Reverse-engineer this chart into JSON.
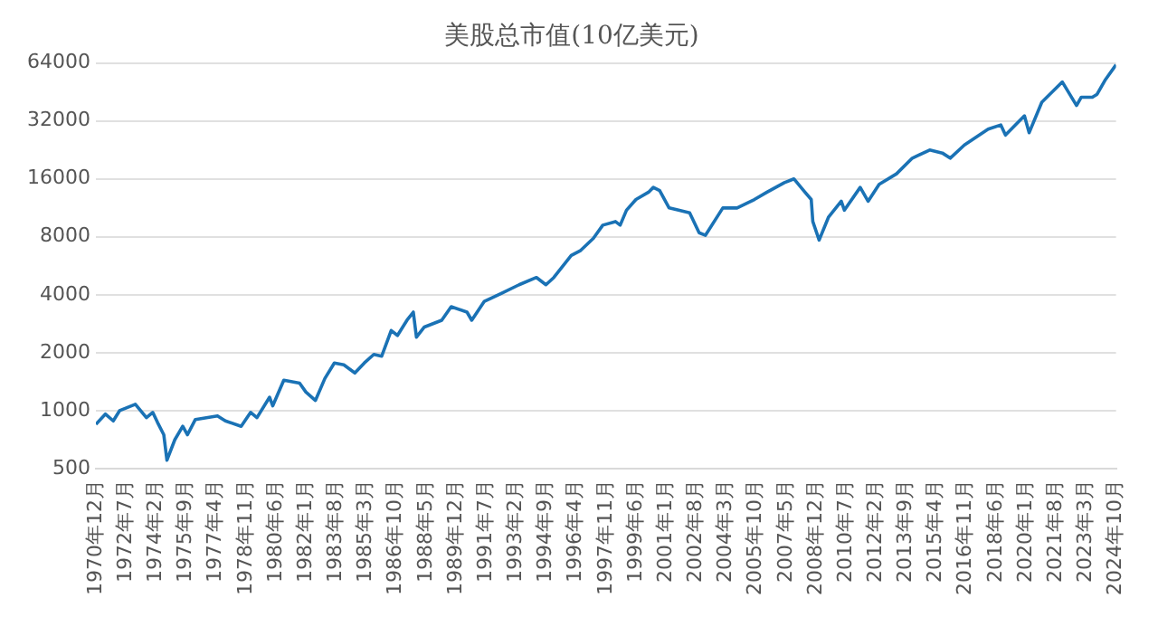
{
  "chart_data": {
    "type": "line",
    "title": "美股总市值(10亿美元)",
    "x": [
      "1970-12",
      "1971-06",
      "1971-11",
      "1972-03",
      "1973-01",
      "1973-08",
      "1973-12",
      "1974-03",
      "1974-07",
      "1974-09",
      "1975-02",
      "1975-07",
      "1975-10",
      "1976-03",
      "1977-05",
      "1977-10",
      "1978-08",
      "1979-02",
      "1979-06",
      "1980-02",
      "1980-04",
      "1980-11",
      "1981-09",
      "1982-01",
      "1982-07",
      "1983-01",
      "1983-07",
      "1984-01",
      "1984-08",
      "1985-02",
      "1985-08",
      "1986-01",
      "1986-07",
      "1986-11",
      "1987-05",
      "1987-09",
      "1987-11",
      "1988-04",
      "1989-03",
      "1989-09",
      "1990-07",
      "1990-10",
      "1991-06",
      "1992-05",
      "1993-04",
      "1994-03",
      "1994-09",
      "1995-02",
      "1996-01",
      "1996-07",
      "1997-03",
      "1997-09",
      "1998-05",
      "1998-08",
      "1998-12",
      "1999-06",
      "2000-02",
      "2000-05",
      "2000-09",
      "2001-03",
      "2001-09",
      "2002-04",
      "2002-10",
      "2003-02",
      "2004-01",
      "2004-10",
      "2005-09",
      "2006-05",
      "2007-04",
      "2007-10",
      "2008-05",
      "2008-09",
      "2008-10",
      "2009-02",
      "2009-08",
      "2010-04",
      "2010-06",
      "2011-04",
      "2011-09",
      "2012-04",
      "2013-03",
      "2014-01",
      "2014-12",
      "2015-08",
      "2016-01",
      "2016-10",
      "2018-01",
      "2018-09",
      "2018-12",
      "2019-12",
      "2020-03",
      "2020-11",
      "2021-12",
      "2022-09",
      "2022-12",
      "2023-07",
      "2023-10",
      "2024-03",
      "2024-10"
    ],
    "series": [
      {
        "color": "#1a72b5",
        "values": [
          850,
          960,
          885,
          1000,
          1080,
          920,
          980,
          870,
          750,
          553,
          707,
          830,
          750,
          900,
          940,
          885,
          830,
          980,
          920,
          1175,
          1060,
          1440,
          1390,
          1250,
          1130,
          1470,
          1770,
          1730,
          1570,
          1770,
          1960,
          1920,
          2610,
          2460,
          2950,
          3250,
          2410,
          2720,
          2950,
          3470,
          3250,
          2950,
          3700,
          4080,
          4510,
          4920,
          4510,
          4920,
          6400,
          6800,
          7850,
          9200,
          9600,
          9200,
          11000,
          12500,
          13650,
          14450,
          13900,
          11300,
          11000,
          10650,
          8400,
          8150,
          11300,
          11300,
          12500,
          13650,
          15300,
          16000,
          13650,
          12500,
          9600,
          7700,
          10150,
          12250,
          11000,
          14450,
          12250,
          15000,
          17000,
          20500,
          22600,
          21800,
          20500,
          24000,
          29000,
          30500,
          27000,
          34000,
          27800,
          40000,
          51000,
          38500,
          42500,
          42500,
          44000,
          52000,
          62600
        ]
      }
    ],
    "xlim": [
      "1970-12",
      "2024-10"
    ],
    "xticks": [
      {
        "value": "1970-12",
        "label": "1970年12月"
      },
      {
        "value": "1972-07",
        "label": "1972年7月"
      },
      {
        "value": "1974-02",
        "label": "1974年2月"
      },
      {
        "value": "1975-09",
        "label": "1975年9月"
      },
      {
        "value": "1977-04",
        "label": "1977年4月"
      },
      {
        "value": "1978-11",
        "label": "1978年11月"
      },
      {
        "value": "1980-06",
        "label": "1980年6月"
      },
      {
        "value": "1982-01",
        "label": "1982年1月"
      },
      {
        "value": "1983-08",
        "label": "1983年8月"
      },
      {
        "value": "1985-03",
        "label": "1985年3月"
      },
      {
        "value": "1986-10",
        "label": "1986年10月"
      },
      {
        "value": "1988-05",
        "label": "1988年5月"
      },
      {
        "value": "1989-12",
        "label": "1989年12月"
      },
      {
        "value": "1991-07",
        "label": "1991年7月"
      },
      {
        "value": "1993-02",
        "label": "1993年2月"
      },
      {
        "value": "1994-09",
        "label": "1994年9月"
      },
      {
        "value": "1996-04",
        "label": "1996年4月"
      },
      {
        "value": "1997-11",
        "label": "1997年11月"
      },
      {
        "value": "1999-06",
        "label": "1999年6月"
      },
      {
        "value": "2001-01",
        "label": "2001年1月"
      },
      {
        "value": "2002-08",
        "label": "2002年8月"
      },
      {
        "value": "2004-03",
        "label": "2004年3月"
      },
      {
        "value": "2005-10",
        "label": "2005年10月"
      },
      {
        "value": "2007-05",
        "label": "2007年5月"
      },
      {
        "value": "2008-12",
        "label": "2008年12月"
      },
      {
        "value": "2010-07",
        "label": "2010年7月"
      },
      {
        "value": "2012-02",
        "label": "2012年2月"
      },
      {
        "value": "2013-09",
        "label": "2013年9月"
      },
      {
        "value": "2015-04",
        "label": "2015年4月"
      },
      {
        "value": "2016-11",
        "label": "2016年11月"
      },
      {
        "value": "2018-06",
        "label": "2018年6月"
      },
      {
        "value": "2020-01",
        "label": "2020年1月"
      },
      {
        "value": "2021-08",
        "label": "2021年8月"
      },
      {
        "value": "2023-03",
        "label": "2023年3月"
      },
      {
        "value": "2024-10",
        "label": "2024年10月"
      }
    ],
    "log": "y",
    "ylim": [
      500,
      64000
    ],
    "yticks": [
      500,
      1000,
      2000,
      4000,
      8000,
      16000,
      32000,
      64000
    ],
    "grid": "y",
    "marker": "none",
    "line_style": "solid",
    "legend": false
  }
}
